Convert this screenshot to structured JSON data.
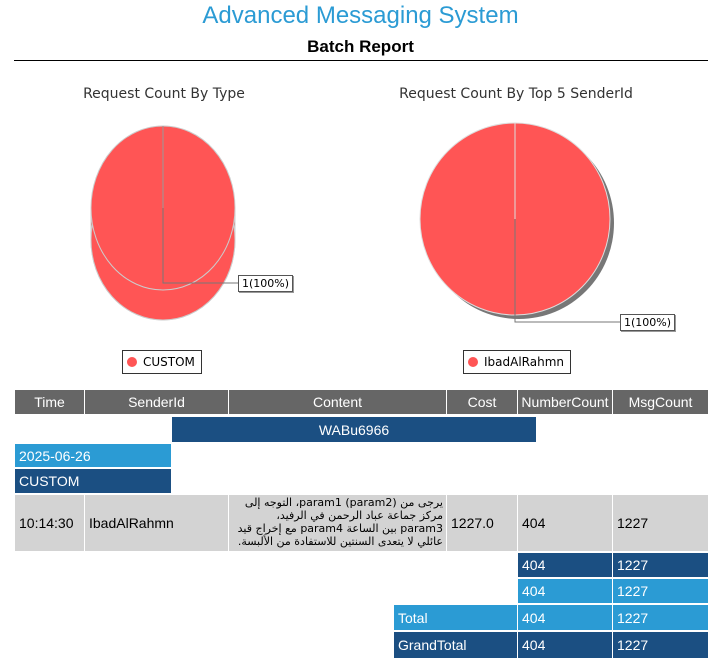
{
  "header": {
    "app_title": "Advanced Messaging System",
    "report_title": "Batch Report"
  },
  "charts": {
    "pie1": {
      "title": "Request Count By Type",
      "label": "1(100%)",
      "legend": "CUSTOM",
      "color": "#ff5555"
    },
    "pie2": {
      "title": "Request Count By Top 5 SenderId",
      "label": "1(100%)",
      "legend": "IbadAlRahmn",
      "color": "#ff5555"
    }
  },
  "chart_data": [
    {
      "type": "pie",
      "title": "Request Count By Type",
      "categories": [
        "CUSTOM"
      ],
      "values": [
        1
      ],
      "data_labels": [
        "1(100%)"
      ],
      "legend": "bottom"
    },
    {
      "type": "pie",
      "title": "Request Count By Top 5 SenderId",
      "categories": [
        "IbadAlRahmn"
      ],
      "values": [
        1
      ],
      "data_labels": [
        "1(100%)"
      ],
      "legend": "bottom"
    }
  ],
  "table": {
    "columns": [
      "Time",
      "SenderId",
      "Content",
      "Cost",
      "NumberCount",
      "MsgCount"
    ],
    "group_header": "WABu6966",
    "date_group": "2025-06-26",
    "type_group": "CUSTOM",
    "row": {
      "time": "10:14:30",
      "sender": "IbadAlRahmn",
      "content": "يرجى من (param2) param1، التوجه إلى مركز جماعة عباد الرحمن في الرفيد، param3 بين الساعة param4 مع إخراج قيد عائلي لا يتعدى السنتين للاستفادة من الألبسة.",
      "cost": "1227.0",
      "number_count": "404",
      "msg_count": "1227"
    },
    "subtotal1": {
      "number_count": "404",
      "msg_count": "1227"
    },
    "subtotal2": {
      "number_count": "404",
      "msg_count": "1227"
    },
    "total": {
      "label": "Total",
      "number_count": "404",
      "msg_count": "1227"
    },
    "grand_total": {
      "label": "GrandTotal",
      "number_count": "404",
      "msg_count": "1227"
    }
  }
}
